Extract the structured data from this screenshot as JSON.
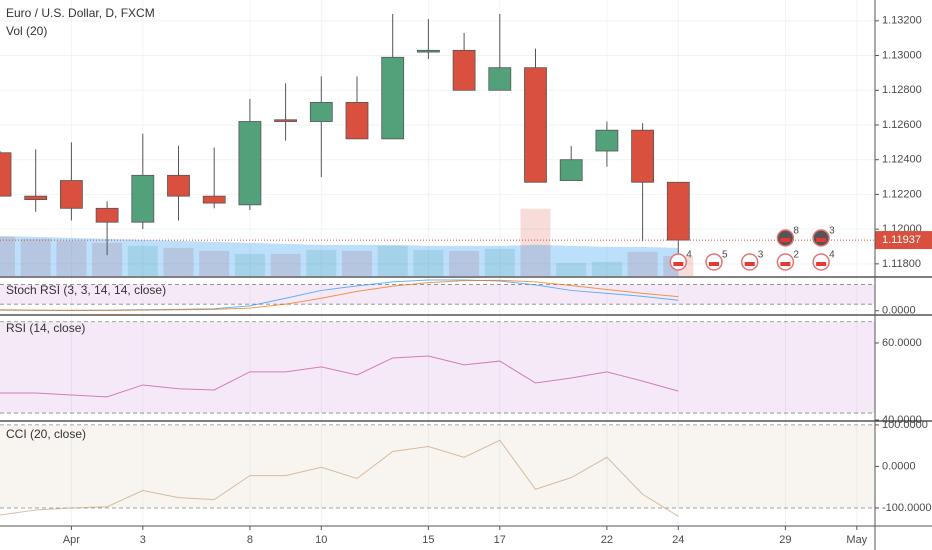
{
  "chart_data": [
    {
      "type": "candlestick",
      "title": "Euro / U.S. Dollar, D, FXCM",
      "subtitle": "Vol (20)",
      "categories": [
        null,
        null,
        "Apr",
        null,
        "3",
        null,
        null,
        "8",
        null,
        "10",
        null,
        null,
        "15",
        null,
        "17",
        null,
        null,
        "22",
        null,
        "24",
        null,
        null,
        "29",
        null,
        "May"
      ],
      "open": [
        1.1244,
        1.1219,
        1.1228,
        1.1212,
        1.1204,
        1.1231,
        1.1219,
        1.1214,
        1.1263,
        1.1262,
        1.1273,
        1.1252,
        1.1302,
        1.1303,
        1.128,
        1.1293,
        1.1228,
        1.1245,
        1.1257,
        1.1227,
        null,
        null,
        null,
        null,
        null
      ],
      "high": [
        1.1245,
        1.1246,
        1.125,
        1.1216,
        1.1255,
        1.1248,
        1.1247,
        1.1275,
        1.1284,
        1.1288,
        1.1288,
        1.1324,
        1.1321,
        1.1313,
        1.1324,
        1.1304,
        1.1248,
        1.1262,
        1.1261,
        1.1227,
        null,
        null,
        null,
        null,
        null
      ],
      "low": [
        1.1219,
        1.121,
        1.1205,
        1.1185,
        1.12,
        1.1205,
        1.1212,
        1.1211,
        1.1251,
        1.123,
        1.1252,
        1.1252,
        1.1298,
        1.128,
        1.128,
        1.1227,
        1.1228,
        1.1236,
        1.1193,
        1.1185,
        null,
        null,
        null,
        null,
        null
      ],
      "close": [
        1.1219,
        1.1217,
        1.1212,
        1.1204,
        1.1231,
        1.1219,
        1.1215,
        1.1262,
        1.1262,
        1.1273,
        1.1252,
        1.1299,
        1.1303,
        1.128,
        1.1293,
        1.1227,
        1.124,
        1.1257,
        1.1227,
        1.11937,
        null,
        null,
        null,
        null,
        null
      ],
      "up_color": "#53a17a",
      "down_color": "#d9503f",
      "volume": [
        39,
        37,
        35,
        33,
        30,
        28,
        25,
        22,
        22,
        26,
        25,
        30,
        26,
        25,
        27,
        67,
        13,
        14,
        24,
        20,
        null,
        null,
        null,
        null,
        null
      ],
      "volume_ma": [
        40,
        39,
        38,
        37,
        36,
        35,
        34,
        33,
        32,
        31,
        31,
        31,
        30,
        30,
        30,
        31,
        30,
        29,
        29,
        28,
        null,
        null,
        null,
        null,
        null
      ],
      "volume_lim": [
        0,
        275
      ],
      "ylim": [
        1.1173,
        1.1332
      ],
      "yticks": [
        {
          "value": 1.132,
          "label": "1.13200"
        },
        {
          "value": 1.13,
          "label": "1.13000"
        },
        {
          "value": 1.128,
          "label": "1.12800"
        },
        {
          "value": 1.126,
          "label": "1.12600"
        },
        {
          "value": 1.124,
          "label": "1.12400"
        },
        {
          "value": 1.122,
          "label": "1.12200"
        },
        {
          "value": 1.12,
          "label": "1.12000"
        },
        {
          "value": 1.118,
          "label": "1.11800"
        }
      ],
      "grid": true,
      "events": [
        {
          "index": 19,
          "count": 4
        },
        {
          "index": 20,
          "count": 5
        },
        {
          "index": 21,
          "count": 3
        },
        {
          "index": 22,
          "count": 2
        },
        {
          "index": 23,
          "count": 4
        },
        {
          "index": 22,
          "count": 8
        },
        {
          "index": 23,
          "count": 3
        }
      ]
    },
    {
      "type": "line",
      "title": "Stoch RSI (3, 3, 14, 14, close)",
      "series": [
        {
          "color": "#2196f3",
          "values": [
            2,
            1,
            1,
            2,
            3,
            4,
            6,
            15,
            38,
            62,
            76,
            88,
            94,
            94,
            91,
            79,
            62,
            53,
            44,
            32,
            null,
            null,
            null,
            null,
            null
          ]
        },
        {
          "color": "#ef6c00",
          "values": [
            3,
            2,
            1,
            1,
            2,
            3,
            4,
            8,
            20,
            38,
            59,
            75,
            86,
            92,
            93,
            88,
            77,
            65,
            53,
            43,
            null,
            null,
            null,
            null,
            null
          ]
        }
      ],
      "bands": [
        20,
        80
      ],
      "band_color": "#9c27b0",
      "ylim": [
        -10,
        100
      ],
      "yticks": [
        {
          "value": 0,
          "label": "0.0000"
        }
      ]
    },
    {
      "type": "line",
      "title": "RSI (14, close)",
      "series": [
        {
          "color": "#c54d9b",
          "values": [
            47.0,
            47.0,
            46.5,
            46.0,
            49.1,
            48.1,
            47.8,
            52.5,
            52.5,
            53.8,
            51.7,
            56.1,
            56.6,
            54.3,
            55.3,
            49.6,
            50.9,
            52.5,
            50.1,
            47.5,
            null,
            null,
            null,
            null,
            null
          ]
        }
      ],
      "bands": [
        41.8,
        65.5
      ],
      "band_color": "#9c27b0",
      "ylim": [
        40,
        67
      ],
      "yticks": [
        {
          "value": 60,
          "label": "60.0000"
        },
        {
          "value": 40,
          "label": "40.0000"
        }
      ]
    },
    {
      "type": "line",
      "title": "CCI (20, close)",
      "series": [
        {
          "color": "#c8a27e",
          "values": [
            -117,
            -105,
            -100,
            -97,
            -58,
            -75,
            -80,
            -22,
            -22,
            -2,
            -29,
            36,
            48,
            22,
            63,
            -55,
            -27,
            22,
            -67,
            -120,
            null,
            null,
            null,
            null,
            null
          ]
        }
      ],
      "bands": [
        -100,
        100
      ],
      "band_color": "#b8a06a",
      "ylim": [
        -141,
        107
      ],
      "yticks": [
        {
          "value": 100,
          "label": "100.0000"
        },
        {
          "value": 0,
          "label": "0.0000"
        },
        {
          "value": -100,
          "label": "-100.0000"
        }
      ]
    }
  ]
}
